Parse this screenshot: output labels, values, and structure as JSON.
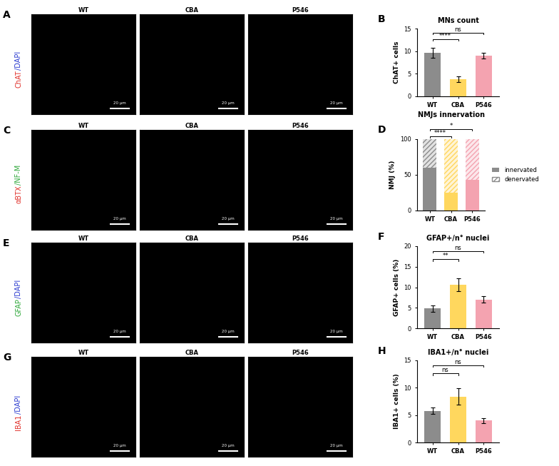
{
  "image_panels": [
    {
      "panel": "A",
      "conditions": [
        "WT",
        "CBA",
        "P546"
      ],
      "scale_bar": "20 µm",
      "stain": [
        {
          "text": "ChAT",
          "color": "#e0302a"
        },
        {
          "text": "/DAPI",
          "color": "#2a3ad0"
        }
      ]
    },
    {
      "panel": "C",
      "conditions": [
        "WT",
        "CBA",
        "P546"
      ],
      "scale_bar": "20 µm",
      "stain": [
        {
          "text": "αBTX",
          "color": "#e0302a"
        },
        {
          "text": "/NF-M",
          "color": "#2fa83a"
        }
      ]
    },
    {
      "panel": "E",
      "conditions": [
        "WT",
        "CBA",
        "P546"
      ],
      "scale_bar": "20 µm",
      "stain": [
        {
          "text": "GFAP",
          "color": "#2fa83a"
        },
        {
          "text": "/DAPI",
          "color": "#2a3ad0"
        }
      ]
    },
    {
      "panel": "G",
      "conditions": [
        "WT",
        "CBA",
        "P546"
      ],
      "scale_bar": "20 µm",
      "stain": [
        {
          "text": "IBA1",
          "color": "#e0302a"
        },
        {
          "text": "/DAPI",
          "color": "#2a3ad0"
        }
      ]
    }
  ],
  "chart_data": [
    {
      "type": "bar",
      "panel": "B",
      "title": "MNs count",
      "y_label": "ChAT+ cells",
      "categories": [
        "WT",
        "CBA",
        "P546"
      ],
      "values": [
        9.6,
        3.8,
        9.0
      ],
      "error": [
        1.1,
        0.6,
        0.7
      ],
      "colors": [
        "#8c8c8c",
        "#ffd75e",
        "#f4a3b0"
      ],
      "ylim": [
        0,
        15
      ],
      "yticks": [
        0,
        5,
        10,
        15
      ],
      "comparisons": [
        {
          "groups": [
            "WT",
            "CBA"
          ],
          "label": "****"
        },
        {
          "groups": [
            "WT",
            "P546"
          ],
          "label": "ns"
        }
      ]
    },
    {
      "type": "bar",
      "panel": "D",
      "title": "NMJs innervation",
      "y_label": "NMJ (%)",
      "stacked": true,
      "categories": [
        "WT",
        "CBA",
        "P546"
      ],
      "series": [
        {
          "name": "innervated",
          "values": [
            60,
            25,
            43
          ]
        },
        {
          "name": "denervated",
          "values": [
            40,
            75,
            57
          ]
        }
      ],
      "colors": [
        "#8c8c8c",
        "#ffd75e",
        "#f4a3b0"
      ],
      "ylim": [
        0,
        100
      ],
      "yticks": [
        0,
        50,
        100
      ],
      "legend": "center left",
      "comparisons": [
        {
          "groups": [
            "WT",
            "CBA"
          ],
          "label": "****"
        },
        {
          "groups": [
            "WT",
            "P546"
          ],
          "label": "*"
        }
      ]
    },
    {
      "type": "bar",
      "panel": "F",
      "title": "GFAP+/n° nuclei",
      "y_label": "GFAP+ cells (%)",
      "categories": [
        "WT",
        "CBA",
        "P546"
      ],
      "values": [
        4.8,
        10.6,
        7.0
      ],
      "error": [
        0.8,
        1.6,
        0.8
      ],
      "colors": [
        "#8c8c8c",
        "#ffd75e",
        "#f4a3b0"
      ],
      "ylim": [
        0,
        20
      ],
      "yticks": [
        0,
        5,
        10,
        15,
        20
      ],
      "comparisons": [
        {
          "groups": [
            "WT",
            "CBA"
          ],
          "label": "**"
        },
        {
          "groups": [
            "WT",
            "P546"
          ],
          "label": "ns"
        }
      ]
    },
    {
      "type": "bar",
      "panel": "H",
      "title": "IBA1+/n° nuclei",
      "y_label": "IBA1+ cells (%)",
      "categories": [
        "WT",
        "CBA",
        "P546"
      ],
      "values": [
        5.8,
        8.4,
        4.0
      ],
      "error": [
        0.6,
        1.5,
        0.5
      ],
      "colors": [
        "#8c8c8c",
        "#ffd75e",
        "#f4a3b0"
      ],
      "ylim": [
        0,
        15
      ],
      "yticks": [
        0,
        5,
        10,
        15
      ],
      "comparisons": [
        {
          "groups": [
            "WT",
            "CBA"
          ],
          "label": "ns"
        },
        {
          "groups": [
            "WT",
            "P546"
          ],
          "label": "ns"
        }
      ]
    }
  ]
}
